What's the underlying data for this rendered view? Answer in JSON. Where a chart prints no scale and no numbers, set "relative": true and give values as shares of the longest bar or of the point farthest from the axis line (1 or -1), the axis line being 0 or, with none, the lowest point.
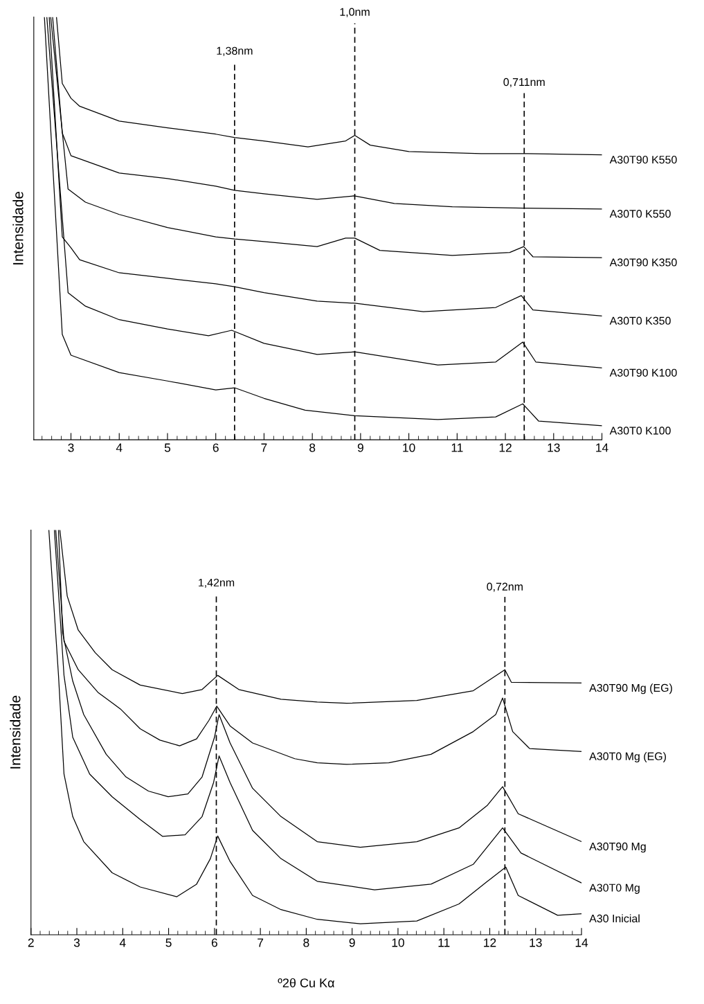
{
  "chart_data": [
    {
      "type": "line",
      "relative": true,
      "ylabel": "Intensidade",
      "xlim": [
        2.23,
        14
      ],
      "xticks": [
        3,
        4,
        5,
        6,
        7,
        8,
        9,
        10,
        11,
        12,
        13,
        14
      ],
      "grid": false,
      "legend": false,
      "marker": "none",
      "line_style": "solid",
      "series": [
        {
          "name": "A30T90 K550",
          "color": "#000000",
          "x": [
            2.7,
            2.82,
            3.0,
            3.18,
            4,
            5,
            6,
            6.39,
            7,
            7.91,
            8.69,
            8.88,
            9.2,
            10,
            11.5,
            12.39,
            14
          ],
          "values": [
            1.0,
            0.843,
            0.808,
            0.789,
            0.754,
            0.738,
            0.723,
            0.715,
            0.707,
            0.693,
            0.707,
            0.72,
            0.697,
            0.682,
            0.677,
            0.677,
            0.674
          ]
        },
        {
          "name": "A30T0 K550",
          "color": "#000000",
          "x": [
            2.62,
            2.82,
            3,
            4,
            5,
            6,
            6.39,
            7,
            8.1,
            8.87,
            9.7,
            10.9,
            12.39,
            14
          ],
          "values": [
            1.0,
            0.726,
            0.672,
            0.631,
            0.618,
            0.6,
            0.59,
            0.582,
            0.569,
            0.577,
            0.559,
            0.551,
            0.548,
            0.546
          ]
        },
        {
          "name": "A30T90 K350",
          "color": "#000000",
          "x": [
            2.58,
            2.94,
            3.3,
            4,
            5,
            6,
            6.39,
            7,
            8.1,
            8.69,
            8.88,
            9.4,
            10.9,
            12.09,
            12.38,
            12.57,
            14
          ],
          "values": [
            1.0,
            0.593,
            0.562,
            0.533,
            0.502,
            0.48,
            0.475,
            0.469,
            0.457,
            0.477,
            0.477,
            0.448,
            0.436,
            0.443,
            0.457,
            0.433,
            0.431
          ]
        },
        {
          "name": "A30T0 K350",
          "color": "#000000",
          "x": [
            2.55,
            2.82,
            3,
            3.18,
            4,
            5,
            6,
            6.39,
            7,
            8.1,
            8.88,
            10.3,
            11.8,
            12.33,
            12.57,
            14
          ],
          "values": [
            1.0,
            0.48,
            0.454,
            0.426,
            0.395,
            0.382,
            0.369,
            0.362,
            0.348,
            0.328,
            0.323,
            0.303,
            0.313,
            0.341,
            0.307,
            0.293
          ]
        },
        {
          "name": "A30T90 K100",
          "color": "#000000",
          "x": [
            2.5,
            2.94,
            3.3,
            4,
            5,
            5.85,
            6.33,
            7,
            8.1,
            8.88,
            10.6,
            11.8,
            12.36,
            12.63,
            14
          ],
          "values": [
            1.0,
            0.348,
            0.316,
            0.284,
            0.262,
            0.246,
            0.259,
            0.228,
            0.202,
            0.208,
            0.177,
            0.184,
            0.231,
            0.184,
            0.17
          ]
        },
        {
          "name": "A30T0 K100",
          "color": "#000000",
          "x": [
            2.45,
            2.82,
            3,
            4,
            5,
            6,
            6.39,
            7,
            7.85,
            8.88,
            10.6,
            11.8,
            12.36,
            12.69,
            14
          ],
          "values": [
            1.0,
            0.249,
            0.2,
            0.159,
            0.139,
            0.118,
            0.123,
            0.098,
            0.07,
            0.057,
            0.048,
            0.054,
            0.085,
            0.044,
            0.033
          ]
        }
      ],
      "ref_lines": [
        {
          "axis": "x",
          "value": 6.39,
          "label": "1,38nm",
          "color": "#000000",
          "line_style": "dashed"
        },
        {
          "axis": "x",
          "value": 8.88,
          "label": "1,0nm",
          "color": "#000000",
          "line_style": "dashed"
        },
        {
          "axis": "x",
          "value": 12.39,
          "label": "0,711nm",
          "color": "#000000",
          "line_style": "dashed"
        }
      ]
    },
    {
      "type": "line",
      "relative": true,
      "ylabel": "Intensidade",
      "xlabel": "º2θ Cu Kα",
      "xlim": [
        2,
        14
      ],
      "xticks": [
        2,
        3,
        4,
        5,
        6,
        7,
        8,
        9,
        10,
        11,
        12,
        13,
        14
      ],
      "grid": false,
      "legend": false,
      "marker": "none",
      "line_style": "solid",
      "series": [
        {
          "name": "A30T90 Mg (EG)",
          "color": "#000000",
          "x": [
            2.63,
            2.79,
            3.03,
            3.4,
            3.77,
            4.38,
            5.3,
            5.73,
            6.07,
            6.53,
            7.45,
            8.24,
            8.88,
            10.41,
            11.64,
            12.33,
            12.47,
            14
          ],
          "values": [
            1.0,
            0.837,
            0.753,
            0.697,
            0.655,
            0.617,
            0.596,
            0.606,
            0.641,
            0.606,
            0.582,
            0.575,
            0.572,
            0.579,
            0.603,
            0.655,
            0.624,
            0.622
          ]
        },
        {
          "name": "A30T0 Mg (EG)",
          "color": "#000000",
          "x": [
            2.54,
            2.72,
            3.03,
            3.46,
            3.95,
            4.38,
            4.81,
            5.24,
            5.61,
            5.88,
            6.05,
            6.34,
            6.83,
            7.75,
            8.24,
            8.88,
            9.8,
            10.72,
            11.64,
            12.13,
            12.28,
            12.5,
            12.87,
            14
          ],
          "values": [
            1.0,
            0.725,
            0.655,
            0.599,
            0.558,
            0.509,
            0.481,
            0.467,
            0.484,
            0.53,
            0.565,
            0.516,
            0.474,
            0.435,
            0.425,
            0.421,
            0.425,
            0.446,
            0.502,
            0.544,
            0.585,
            0.502,
            0.46,
            0.453
          ]
        },
        {
          "name": "A30T90 Mg",
          "color": "#000000",
          "x": [
            2.6,
            2.69,
            2.91,
            3.15,
            3.64,
            4.07,
            4.56,
            4.99,
            5.42,
            5.73,
            6.0,
            6.1,
            6.34,
            6.83,
            7.45,
            8.24,
            9.18,
            10.41,
            11.33,
            11.95,
            12.28,
            12.62,
            14
          ],
          "values": [
            1.0,
            0.746,
            0.627,
            0.544,
            0.446,
            0.39,
            0.355,
            0.341,
            0.348,
            0.39,
            0.488,
            0.544,
            0.474,
            0.362,
            0.292,
            0.23,
            0.216,
            0.23,
            0.264,
            0.32,
            0.366,
            0.299,
            0.23
          ]
        },
        {
          "name": "A30T0 Mg",
          "color": "#000000",
          "x": [
            2.51,
            2.72,
            2.91,
            3.28,
            3.77,
            4.38,
            4.87,
            5.36,
            5.73,
            5.98,
            6.1,
            6.34,
            6.83,
            7.45,
            8.24,
            9.49,
            10.72,
            11.64,
            12.28,
            12.68,
            14
          ],
          "values": [
            1.0,
            0.641,
            0.488,
            0.397,
            0.341,
            0.285,
            0.243,
            0.247,
            0.292,
            0.376,
            0.442,
            0.376,
            0.258,
            0.188,
            0.132,
            0.111,
            0.125,
            0.174,
            0.264,
            0.202,
            0.128
          ]
        },
        {
          "name": "A30 Inicial",
          "color": "#000000",
          "x": [
            2.39,
            2.6,
            2.72,
            2.91,
            3.15,
            3.77,
            4.38,
            5.18,
            5.61,
            5.91,
            6.07,
            6.34,
            6.83,
            7.45,
            8.24,
            9.18,
            10.41,
            11.33,
            11.95,
            12.35,
            12.62,
            13.48,
            14
          ],
          "values": [
            1.0,
            0.641,
            0.397,
            0.292,
            0.23,
            0.153,
            0.118,
            0.094,
            0.125,
            0.188,
            0.244,
            0.181,
            0.097,
            0.062,
            0.038,
            0.027,
            0.034,
            0.076,
            0.132,
            0.167,
            0.097,
            0.048,
            0.052
          ]
        }
      ],
      "ref_lines": [
        {
          "axis": "x",
          "value": 6.04,
          "label": "1,42nm",
          "color": "#000000",
          "line_style": "dashed"
        },
        {
          "axis": "x",
          "value": 12.33,
          "label": "0,72nm",
          "color": "#000000",
          "line_style": "dashed"
        }
      ]
    }
  ]
}
